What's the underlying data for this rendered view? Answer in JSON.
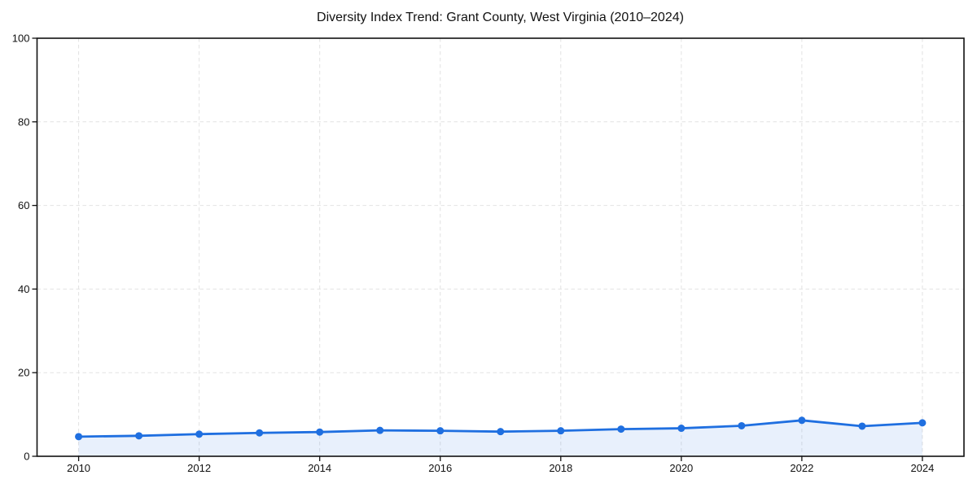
{
  "chart_data": {
    "type": "line",
    "title": "Diversity Index Trend: Grant County, West Virginia (2010–2024)",
    "x": [
      2010,
      2011,
      2012,
      2013,
      2014,
      2015,
      2016,
      2017,
      2018,
      2019,
      2020,
      2021,
      2022,
      2023,
      2024
    ],
    "series": [
      {
        "name": "Diversity Index",
        "values": [
          4.7,
          4.9,
          5.3,
          5.6,
          5.8,
          6.2,
          6.1,
          5.9,
          6.1,
          6.5,
          6.7,
          7.3,
          8.6,
          7.2,
          8.0
        ]
      }
    ],
    "xlabel": "",
    "ylabel": "",
    "xlim": [
      2009.31,
      2024.69
    ],
    "ylim": [
      0,
      100
    ],
    "xticks": [
      2010,
      2012,
      2014,
      2016,
      2018,
      2020,
      2022,
      2024
    ],
    "yticks": [
      0,
      20,
      40,
      60,
      80,
      100
    ],
    "grid": true,
    "grid_style": "dashed",
    "legend": "none",
    "marker": "circle",
    "area_fill": true
  },
  "style": {
    "line_color": "#1f6fe0",
    "fill_opacity": 0.1,
    "grid_color": "#e2e2e2",
    "axis_color": "#111111",
    "text_color": "#111111",
    "background": "#ffffff"
  }
}
